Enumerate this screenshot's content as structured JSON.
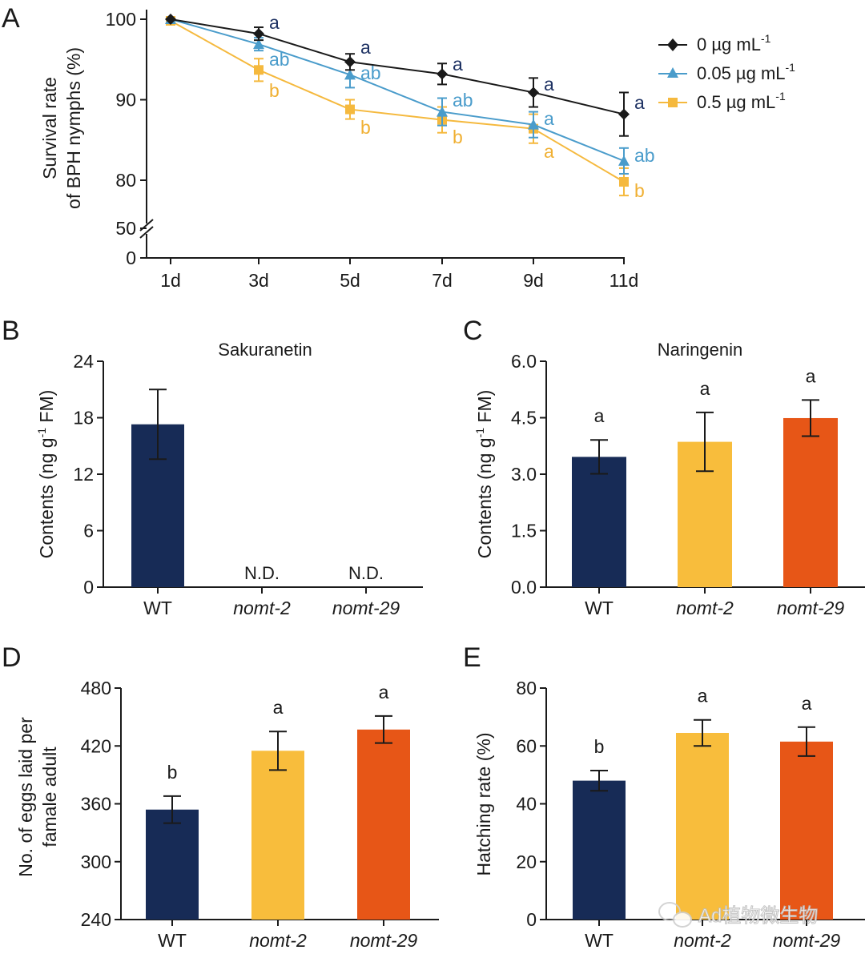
{
  "colors": {
    "black": "#1a1a1a",
    "blue": "#4a9ccb",
    "yellow": "#f5b93e",
    "navy": "#172b56",
    "gold": "#f8bd3c",
    "orange": "#e75617",
    "sig_navy": "#1e3263",
    "sig_blue": "#4a9ccb",
    "sig_yellow": "#f0b033"
  },
  "watermark": {
    "text": "Ad植物微生物"
  },
  "chart_data": [
    {
      "panel": "A",
      "type": "line",
      "title": "",
      "xlabel": "",
      "ylabel_lines": [
        "Survival rate",
        "of BPH nymphs (%)"
      ],
      "categories": [
        "1d",
        "3d",
        "5d",
        "7d",
        "9d",
        "11d"
      ],
      "yticks": [
        "100",
        "90",
        "80",
        "50",
        "0"
      ],
      "ylim": [
        78,
        100
      ],
      "axis_break": true,
      "series": [
        {
          "name": "0 µg mL",
          "unit_sup": "-1",
          "color_key": "black",
          "sig_color_key": "sig_navy",
          "marker": "diamond",
          "values": [
            100,
            98.2,
            94.7,
            93.2,
            90.9,
            88.2
          ],
          "errors": [
            0,
            0.8,
            1.0,
            1.3,
            1.8,
            2.7
          ],
          "labels": [
            "",
            "a",
            "a",
            "a",
            "a",
            "a"
          ]
        },
        {
          "name": "0.05 µg mL",
          "unit_sup": "-1",
          "color_key": "blue",
          "sig_color_key": "sig_blue",
          "marker": "triangle",
          "values": [
            100,
            96.9,
            93.1,
            88.5,
            86.9,
            82.4
          ],
          "errors": [
            0,
            0.8,
            1.6,
            1.7,
            1.6,
            1.6
          ],
          "labels": [
            "",
            "ab",
            "ab",
            "ab",
            "a",
            "ab"
          ]
        },
        {
          "name": "0.5 µg mL",
          "unit_sup": "-1",
          "color_key": "yellow",
          "sig_color_key": "sig_yellow",
          "marker": "square",
          "values": [
            99.8,
            93.7,
            88.8,
            87.5,
            86.4,
            79.8
          ],
          "errors": [
            0,
            1.4,
            1.2,
            1.6,
            1.8,
            1.7
          ],
          "labels": [
            "",
            "b",
            "b",
            "b",
            "a",
            "b"
          ]
        }
      ]
    },
    {
      "panel": "B",
      "type": "bar",
      "title": "Sakuranetin",
      "ylabel": "Contents (ng g",
      "ylabel_sup": "-1",
      "ylabel_end": " FM)",
      "categories": [
        "WT",
        "nomt-2",
        "nomt-29"
      ],
      "italic": [
        false,
        true,
        true
      ],
      "values": [
        17.3,
        0,
        0
      ],
      "errors": [
        3.7,
        0,
        0
      ],
      "labels": [
        "",
        "",
        ""
      ],
      "nd": [
        "",
        "N.D.",
        "N.D."
      ],
      "bar_color_keys": [
        "navy",
        "navy",
        "navy"
      ],
      "ylim": [
        0,
        24
      ],
      "yticks": [
        "24",
        "18",
        "12",
        "6",
        "0"
      ]
    },
    {
      "panel": "C",
      "type": "bar",
      "title": "Naringenin",
      "ylabel": "Contents (ng g",
      "ylabel_sup": "-1",
      "ylabel_end": " FM)",
      "categories": [
        "WT",
        "nomt-2",
        "nomt-29"
      ],
      "italic": [
        false,
        true,
        true
      ],
      "values": [
        3.46,
        3.86,
        4.49
      ],
      "errors": [
        0.45,
        0.78,
        0.48
      ],
      "labels": [
        "a",
        "a",
        "a"
      ],
      "nd": [
        "",
        "",
        ""
      ],
      "bar_color_keys": [
        "navy",
        "gold",
        "orange"
      ],
      "ylim": [
        0,
        6
      ],
      "yticks": [
        "6.0",
        "4.5",
        "3.0",
        "1.5",
        "0.0"
      ]
    },
    {
      "panel": "D",
      "type": "bar",
      "title": "",
      "ylabel_lines": [
        "No. of eggs laid per",
        "famale adult"
      ],
      "categories": [
        "WT",
        "nomt-2",
        "nomt-29"
      ],
      "italic": [
        false,
        true,
        true
      ],
      "values": [
        354,
        415,
        437
      ],
      "errors": [
        14,
        20,
        14
      ],
      "labels": [
        "b",
        "a",
        "a"
      ],
      "nd": [
        "",
        "",
        ""
      ],
      "bar_color_keys": [
        "navy",
        "gold",
        "orange"
      ],
      "ylim": [
        240,
        480
      ],
      "yticks": [
        "480",
        "420",
        "360",
        "300",
        "240"
      ]
    },
    {
      "panel": "E",
      "type": "bar",
      "title": "",
      "ylabel": "Hatching rate (%)",
      "categories": [
        "WT",
        "nomt-2",
        "nomt-29"
      ],
      "italic": [
        false,
        true,
        true
      ],
      "values": [
        48,
        64.5,
        61.5
      ],
      "errors": [
        3.5,
        4.5,
        5.0
      ],
      "labels": [
        "b",
        "a",
        "a"
      ],
      "nd": [
        "",
        "",
        ""
      ],
      "bar_color_keys": [
        "navy",
        "gold",
        "orange"
      ],
      "ylim": [
        0,
        80
      ],
      "yticks": [
        "80",
        "60",
        "40",
        "20",
        "0"
      ]
    }
  ]
}
